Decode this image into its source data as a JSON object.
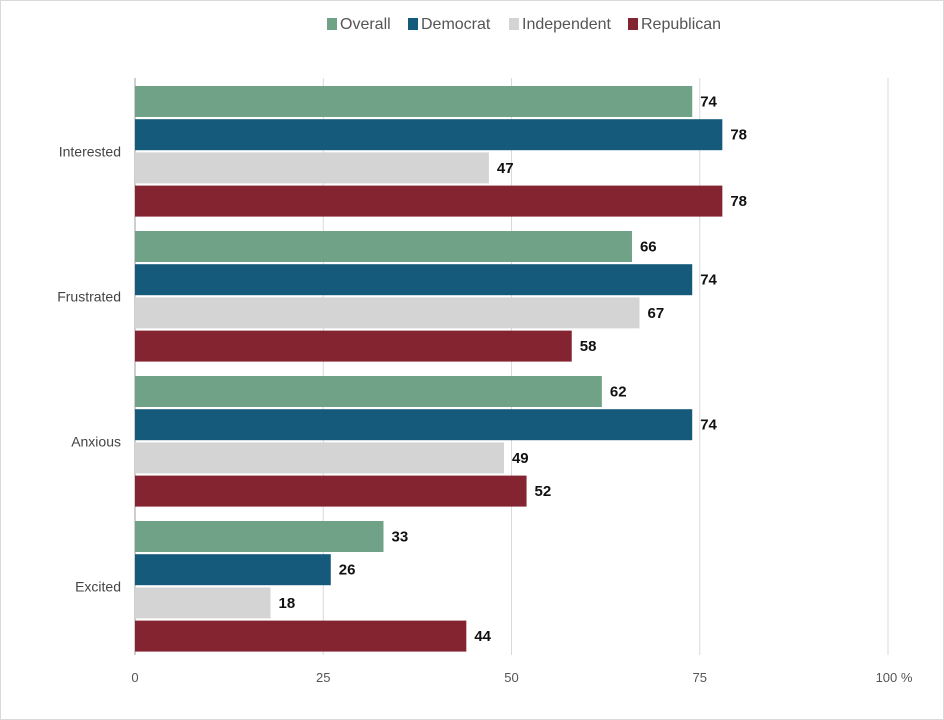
{
  "chart_data": {
    "type": "bar",
    "orientation": "horizontal",
    "categories": [
      "Interested",
      "Frustrated",
      "Anxious",
      "Excited"
    ],
    "series": [
      {
        "name": "Overall",
        "values": [
          74,
          66,
          62,
          33
        ],
        "color": "#70a287"
      },
      {
        "name": "Democrat",
        "values": [
          78,
          74,
          74,
          26
        ],
        "color": "#155a7a"
      },
      {
        "name": "Independent",
        "values": [
          47,
          67,
          49,
          18
        ],
        "color": "#d4d4d4"
      },
      {
        "name": "Republican",
        "values": [
          78,
          58,
          52,
          44
        ],
        "color": "#852431"
      }
    ],
    "x_ticks": [
      "0",
      "25",
      "50",
      "75",
      "100 %"
    ],
    "xlim": [
      0,
      100
    ],
    "grid": true,
    "legend_position": "top-center",
    "data_labels": true
  }
}
